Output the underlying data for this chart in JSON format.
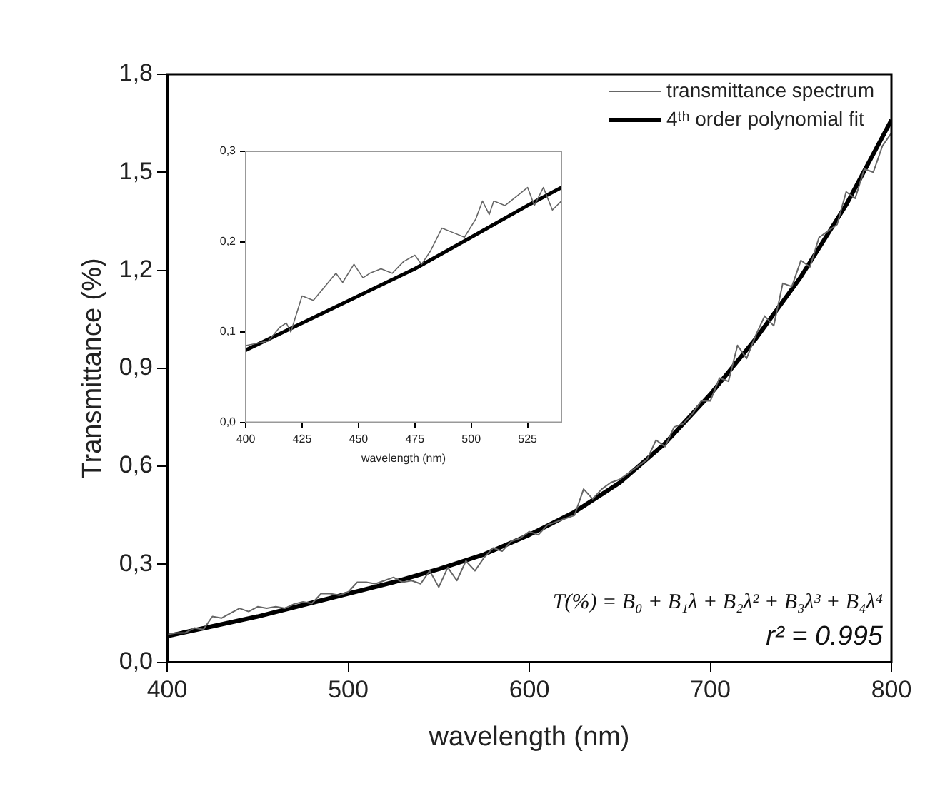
{
  "chart_data": [
    {
      "type": "line",
      "xlabel": "wavelength (nm)",
      "ylabel": "Transmittance (%)",
      "xlim": [
        400,
        800
      ],
      "xticks": [
        400,
        500,
        600,
        700,
        800
      ],
      "ylim": [
        0,
        1.8
      ],
      "yticks": [
        {
          "value": 0,
          "label": "0,0"
        },
        {
          "value": 0.3,
          "label": "0,3"
        },
        {
          "value": 0.6,
          "label": "0,6"
        },
        {
          "value": 0.9,
          "label": "0,9"
        },
        {
          "value": 1.2,
          "label": "1,2"
        },
        {
          "value": 1.5,
          "label": "1,5"
        },
        {
          "value": 1.8,
          "label": "1,8"
        }
      ],
      "grid": false,
      "legend": "top right",
      "marker": "none",
      "line_style": "solid",
      "annotations": [
        "T(%) = B₀ + B₁λ + B₂λ² + B₃λ³ + B₄λ⁴",
        "r² = 0.995"
      ],
      "series": [
        {
          "name": "transmittance spectrum",
          "color": "#666666",
          "x": [
            400,
            405,
            410,
            415,
            420,
            425,
            430,
            435,
            440,
            445,
            450,
            455,
            460,
            465,
            470,
            475,
            480,
            485,
            490,
            495,
            500,
            505,
            510,
            515,
            520,
            525,
            530,
            535,
            540,
            545,
            550,
            555,
            560,
            565,
            570,
            575,
            580,
            585,
            590,
            595,
            600,
            605,
            610,
            615,
            620,
            625,
            630,
            635,
            640,
            645,
            650,
            655,
            660,
            665,
            670,
            675,
            680,
            685,
            690,
            695,
            700,
            705,
            710,
            715,
            720,
            725,
            730,
            735,
            740,
            745,
            750,
            755,
            760,
            765,
            770,
            775,
            780,
            785,
            790,
            795,
            800
          ],
          "values": [
            0.085,
            0.09,
            0.09,
            0.105,
            0.1,
            0.14,
            0.135,
            0.15,
            0.165,
            0.155,
            0.17,
            0.165,
            0.17,
            0.165,
            0.178,
            0.185,
            0.18,
            0.21,
            0.21,
            0.205,
            0.215,
            0.245,
            0.245,
            0.24,
            0.25,
            0.26,
            0.245,
            0.25,
            0.24,
            0.28,
            0.23,
            0.29,
            0.25,
            0.31,
            0.28,
            0.32,
            0.35,
            0.34,
            0.37,
            0.38,
            0.4,
            0.39,
            0.42,
            0.43,
            0.44,
            0.45,
            0.53,
            0.5,
            0.53,
            0.55,
            0.56,
            0.58,
            0.6,
            0.62,
            0.68,
            0.66,
            0.72,
            0.73,
            0.76,
            0.8,
            0.8,
            0.87,
            0.86,
            0.97,
            0.93,
            1.0,
            1.06,
            1.03,
            1.16,
            1.15,
            1.23,
            1.21,
            1.3,
            1.32,
            1.34,
            1.44,
            1.42,
            1.51,
            1.5,
            1.58,
            1.62
          ]
        },
        {
          "name": "4ᵗʰ order polynomial fit",
          "color": "#000000",
          "x": [
            400,
            425,
            450,
            475,
            500,
            525,
            550,
            575,
            600,
            625,
            650,
            675,
            700,
            725,
            750,
            775,
            800
          ],
          "values": [
            0.08,
            0.11,
            0.14,
            0.175,
            0.21,
            0.245,
            0.285,
            0.33,
            0.39,
            0.46,
            0.55,
            0.67,
            0.82,
            0.99,
            1.18,
            1.4,
            1.66
          ]
        }
      ]
    },
    {
      "type": "line",
      "xlabel": "wavelength (nm)",
      "xlim": [
        400,
        540
      ],
      "xticks": [
        400,
        425,
        450,
        475,
        500,
        525
      ],
      "ylim": [
        0,
        0.3
      ],
      "yticks": [
        {
          "value": 0,
          "label": "0,0"
        },
        {
          "value": 0.1,
          "label": "0,1"
        },
        {
          "value": 0.2,
          "label": "0,2"
        },
        {
          "value": 0.3,
          "label": "0,3"
        }
      ],
      "grid": false,
      "marker": "none",
      "line_style": "solid",
      "series": [
        {
          "color": "#666666",
          "x": [
            400,
            410,
            415,
            418,
            420,
            425,
            430,
            435,
            440,
            443,
            448,
            452,
            455,
            460,
            465,
            470,
            475,
            478,
            482,
            487,
            492,
            497,
            502,
            505,
            508,
            510,
            515,
            520,
            525,
            528,
            532,
            536,
            540
          ],
          "values": [
            0.085,
            0.09,
            0.105,
            0.11,
            0.1,
            0.14,
            0.135,
            0.15,
            0.165,
            0.155,
            0.175,
            0.16,
            0.165,
            0.17,
            0.165,
            0.178,
            0.185,
            0.175,
            0.19,
            0.215,
            0.21,
            0.205,
            0.225,
            0.245,
            0.23,
            0.245,
            0.24,
            0.25,
            0.26,
            0.24,
            0.26,
            0.235,
            0.245
          ]
        },
        {
          "color": "#000000",
          "x": [
            400,
            425,
            450,
            475,
            500,
            525,
            540
          ],
          "values": [
            0.08,
            0.11,
            0.14,
            0.17,
            0.205,
            0.24,
            0.26
          ]
        }
      ]
    }
  ]
}
